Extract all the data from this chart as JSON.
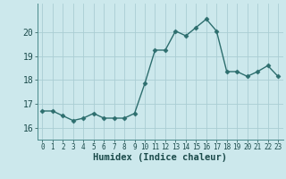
{
  "x": [
    0,
    1,
    2,
    3,
    4,
    5,
    6,
    7,
    8,
    9,
    10,
    11,
    12,
    13,
    14,
    15,
    16,
    17,
    18,
    19,
    20,
    21,
    22,
    23
  ],
  "y": [
    16.7,
    16.7,
    16.5,
    16.3,
    16.4,
    16.6,
    16.4,
    16.4,
    16.4,
    16.6,
    17.85,
    19.25,
    19.25,
    20.05,
    19.85,
    20.2,
    20.55,
    20.05,
    18.35,
    18.35,
    18.15,
    18.35,
    18.6,
    18.15
  ],
  "line_color": "#2d6e6e",
  "marker": "D",
  "marker_size": 2.5,
  "bg_color": "#cce8ec",
  "grid_color": "#aacdd4",
  "xlabel": "Humidex (Indice chaleur)",
  "ylim": [
    15.5,
    21.2
  ],
  "xlim": [
    -0.5,
    23.5
  ],
  "yticks": [
    16,
    17,
    18,
    19,
    20
  ],
  "xticks": [
    0,
    1,
    2,
    3,
    4,
    5,
    6,
    7,
    8,
    9,
    10,
    11,
    12,
    13,
    14,
    15,
    16,
    17,
    18,
    19,
    20,
    21,
    22,
    23
  ],
  "xlabel_fontsize": 7.5,
  "ytick_fontsize": 7,
  "xtick_fontsize": 5.5,
  "line_width": 1.0
}
